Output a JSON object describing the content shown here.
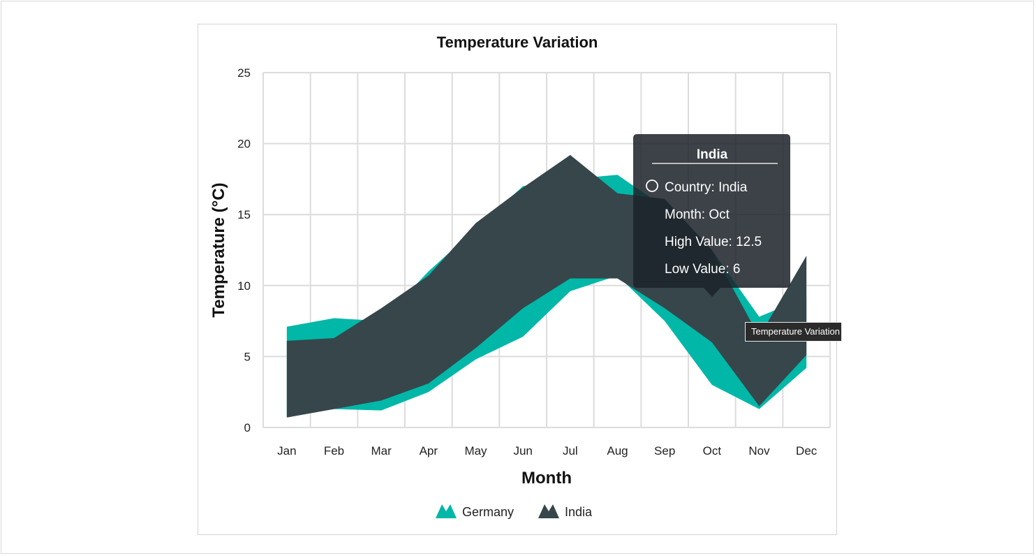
{
  "chart_data": {
    "type": "area",
    "subtype": "range-area",
    "title": "Temperature Variation",
    "xlabel": "Month",
    "ylabel": "Temperature (°C)",
    "categories": [
      "Jan",
      "Feb",
      "Mar",
      "Apr",
      "May",
      "Jun",
      "Jul",
      "Aug",
      "Sep",
      "Oct",
      "Nov",
      "Dec"
    ],
    "ylim": [
      0,
      25
    ],
    "yticks": [
      0,
      5,
      10,
      15,
      20,
      25
    ],
    "grid": true,
    "legend_position": "bottom",
    "series": [
      {
        "name": "Germany",
        "color": "#00b7a8",
        "high": [
          7.1,
          7.7,
          7.5,
          11,
          14,
          17,
          17.5,
          17.8,
          15.5,
          12.5,
          7.8,
          9.2
        ],
        "low": [
          0.8,
          1.3,
          1.2,
          2.5,
          4.8,
          6.4,
          9.6,
          10.7,
          7.5,
          3,
          1.3,
          4.2
        ]
      },
      {
        "name": "India",
        "color": "#36464b",
        "high": [
          6.1,
          6.3,
          8.4,
          10.7,
          14.4,
          16.9,
          19.2,
          16.5,
          16.1,
          12.5,
          6.4,
          12.1
        ],
        "low": [
          0.7,
          1.3,
          1.9,
          3.1,
          5.6,
          8.4,
          10.5,
          10.5,
          8.4,
          6,
          1.5,
          5.1
        ]
      }
    ]
  },
  "tooltip": {
    "header": "India",
    "lines": [
      "Country: India",
      "Month: Oct",
      "High Value: 12.5",
      "Low Value: 6"
    ]
  },
  "hover_hint": "Temperature Variation"
}
